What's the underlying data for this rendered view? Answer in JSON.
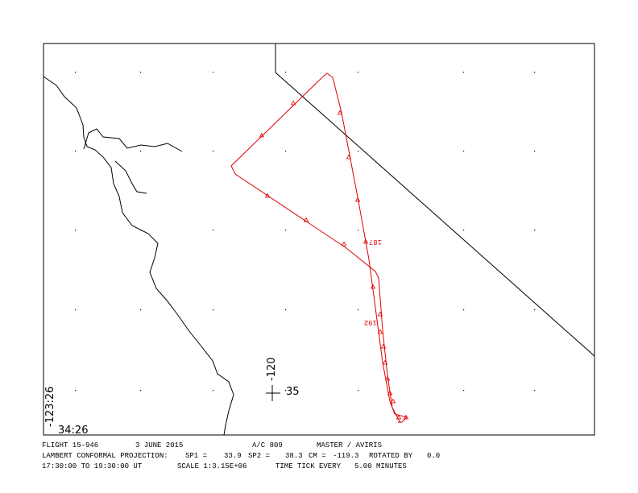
{
  "footer": {
    "line1": [
      "FLIGHT 15-946",
      "3 JUNE 2015",
      "A/C 809",
      "MASTER / AVIRIS"
    ],
    "line2": [
      "LAMBERT CONFORMAL PROJECTION:",
      "SP1 =",
      "33.9",
      "SP2 =",
      "38.3",
      "CM =",
      "-119.3",
      "ROTATED BY",
      "0.0"
    ],
    "line3": [
      "17:30:00 TO 19:30:00 UT",
      "SCALE 1:3.15E+06",
      "TIME TICK EVERY",
      "5.00 MINUTES"
    ]
  },
  "map": {
    "corner_lon": "-123:26",
    "corner_lat": "34:26",
    "cross_lon": "-120",
    "cross_lat": "35",
    "track_labels": [
      "187",
      "192"
    ]
  }
}
